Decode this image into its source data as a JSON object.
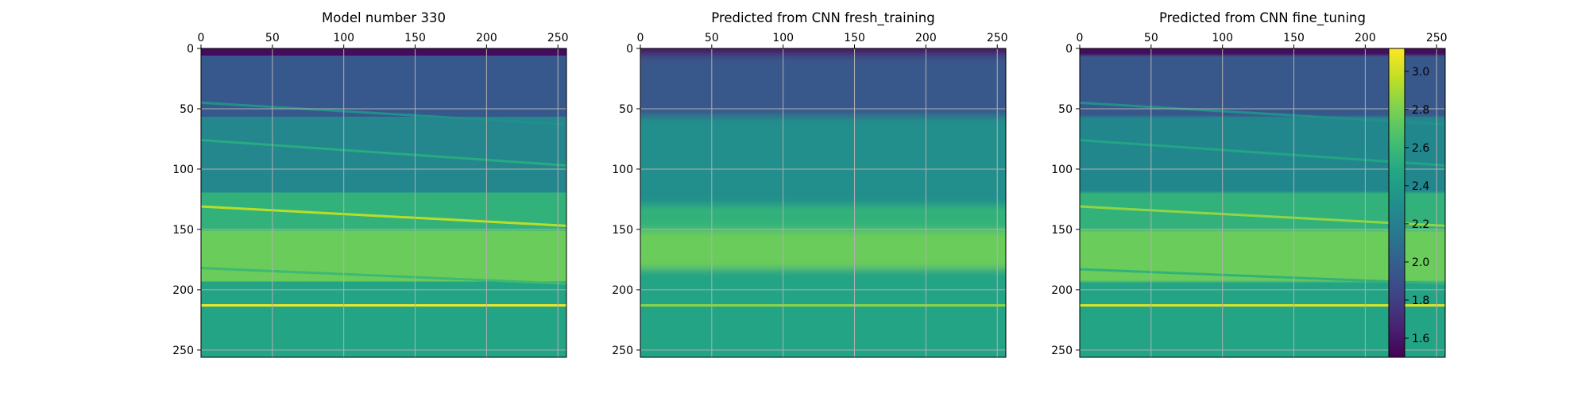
{
  "chart_data": {
    "type": "heatmap",
    "colormap": "viridis",
    "grid": true,
    "x_tick_position": "top",
    "y_inverted": true,
    "colorbar": {
      "position": "right",
      "range": [
        1.5,
        3.12
      ],
      "ticks": [
        "1.6",
        "1.8",
        "2.0",
        "2.2",
        "2.4",
        "2.6",
        "2.8",
        "3.0"
      ]
    },
    "panels": [
      {
        "id": "model",
        "title": "Model number 330",
        "x_ticks": [
          "0",
          "50",
          "100",
          "150",
          "200",
          "250"
        ],
        "y_ticks": [
          "0",
          "50",
          "100",
          "150",
          "200",
          "250"
        ],
        "xlim": [
          0,
          256
        ],
        "ylim": [
          256,
          0
        ],
        "style": "sharp",
        "layers": [
          {
            "depth": [
              0,
              12
            ],
            "value": 1.55
          },
          {
            "depth": [
              12,
              60
            ],
            "value": 1.95
          },
          {
            "depth": [
              60,
              120
            ],
            "value": 2.25
          },
          {
            "depth": [
              120,
              150
            ],
            "value": 2.55
          },
          {
            "depth": [
              150,
              190
            ],
            "value": 2.75
          },
          {
            "depth": [
              190,
              256
            ],
            "value": 2.45
          }
        ],
        "interfaces": [
          {
            "y_left": 45,
            "y_right": 63,
            "value": 2.3
          },
          {
            "y_left": 76,
            "y_right": 97,
            "value": 2.5
          },
          {
            "y_left": 131,
            "y_right": 147,
            "value": 2.95
          },
          {
            "y_left": 182,
            "y_right": 195,
            "value": 2.6
          },
          {
            "y_left": 213,
            "y_right": 213,
            "value": 3.1
          }
        ]
      },
      {
        "id": "fresh",
        "title": "Predicted from CNN fresh_training",
        "x_ticks": [
          "0",
          "50",
          "100",
          "150",
          "200",
          "250"
        ],
        "y_ticks": [
          "0",
          "50",
          "100",
          "150",
          "200",
          "250"
        ],
        "xlim": [
          0,
          256
        ],
        "ylim": [
          256,
          0
        ],
        "style": "blurry",
        "layers": [
          {
            "depth": [
              0,
              12
            ],
            "value": 1.6
          },
          {
            "depth": [
              12,
              60
            ],
            "value": 1.95
          },
          {
            "depth": [
              60,
              130
            ],
            "value": 2.3
          },
          {
            "depth": [
              130,
              150
            ],
            "value": 2.55
          },
          {
            "depth": [
              150,
              180
            ],
            "value": 2.75
          },
          {
            "depth": [
              180,
              256
            ],
            "value": 2.45
          }
        ],
        "interfaces": [
          {
            "y_left": 213,
            "y_right": 213,
            "value": 2.85
          }
        ]
      },
      {
        "id": "fine",
        "title": "Predicted from CNN fine_tuning",
        "x_ticks": [
          "0",
          "50",
          "100",
          "150",
          "200",
          "250"
        ],
        "y_ticks": [
          "0",
          "50",
          "100",
          "150",
          "200",
          "250"
        ],
        "xlim": [
          0,
          256
        ],
        "ylim": [
          256,
          0
        ],
        "style": "smooth",
        "layers": [
          {
            "depth": [
              0,
              12
            ],
            "value": 1.55
          },
          {
            "depth": [
              12,
              60
            ],
            "value": 1.95
          },
          {
            "depth": [
              60,
              120
            ],
            "value": 2.25
          },
          {
            "depth": [
              120,
              150
            ],
            "value": 2.55
          },
          {
            "depth": [
              150,
              190
            ],
            "value": 2.75
          },
          {
            "depth": [
              190,
              256
            ],
            "value": 2.45
          }
        ],
        "interfaces": [
          {
            "y_left": 45,
            "y_right": 63,
            "value": 2.3
          },
          {
            "y_left": 76,
            "y_right": 97,
            "value": 2.45
          },
          {
            "y_left": 131,
            "y_right": 147,
            "value": 2.85
          },
          {
            "y_left": 183,
            "y_right": 195,
            "value": 2.55
          },
          {
            "y_left": 213,
            "y_right": 213,
            "value": 3.05
          }
        ]
      }
    ]
  }
}
